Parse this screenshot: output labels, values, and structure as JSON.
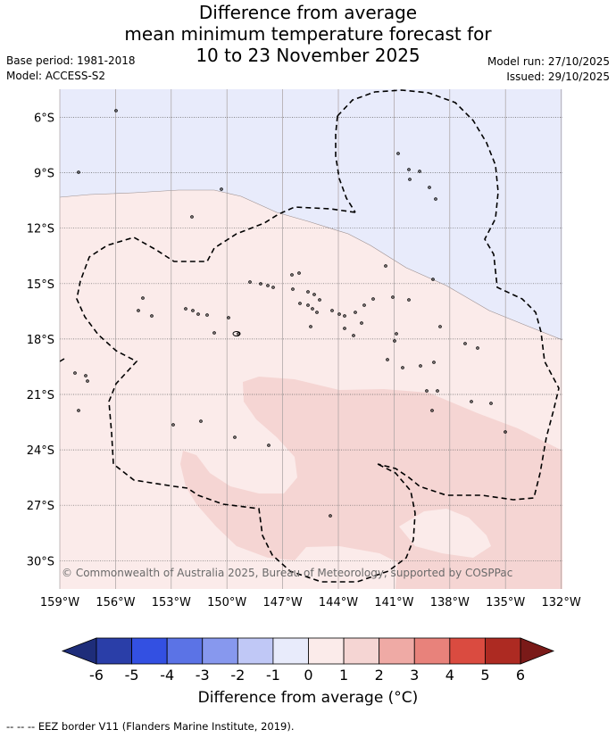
{
  "title": {
    "line1": "Difference from average",
    "line2": "mean minimum temperature forecast for",
    "line3": "10 to 23 November 2025"
  },
  "meta": {
    "base_period": "Base period: 1981-2018",
    "model": "Model: ACCESS-S2",
    "model_run": "Model run: 27/10/2025",
    "issued": "Issued: 29/10/2025"
  },
  "map": {
    "lat_labels": [
      "6°S",
      "9°S",
      "12°S",
      "15°S",
      "18°S",
      "21°S",
      "24°S",
      "27°S",
      "30°S"
    ],
    "lon_labels": [
      "159°W",
      "156°W",
      "153°W",
      "150°W",
      "147°W",
      "144°W",
      "141°W",
      "138°W",
      "135°W",
      "132°W"
    ],
    "copyright": "© Commonwealth of Australia 2025, Bureau of Meteorology, supported by COSPPac",
    "colors": {
      "below_0_to_1": "#e8ebfb",
      "above_0_to_1": "#fbebea",
      "above_1_to_2": "#f5d5d3",
      "grid": "#666666",
      "eez": "#000000"
    }
  },
  "legend": {
    "ticks": [
      "-6",
      "-5",
      "-4",
      "-3",
      "-2",
      "-1",
      "0",
      "1",
      "2",
      "3",
      "4",
      "5",
      "6"
    ],
    "colors": [
      "#2a3ea8",
      "#3350e2",
      "#5b73e6",
      "#8798ee",
      "#c0c8f6",
      "#e8ebfb",
      "#fbebea",
      "#f5d5d3",
      "#efaaa5",
      "#e8827b",
      "#da4b40",
      "#ad2a22"
    ],
    "under_color": "#1e2d7a",
    "over_color": "#7a1a18",
    "title": "Difference from average (°C)"
  },
  "footer": "-- -- -- EEZ border V11 (Flanders Marine Institute, 2019)."
}
